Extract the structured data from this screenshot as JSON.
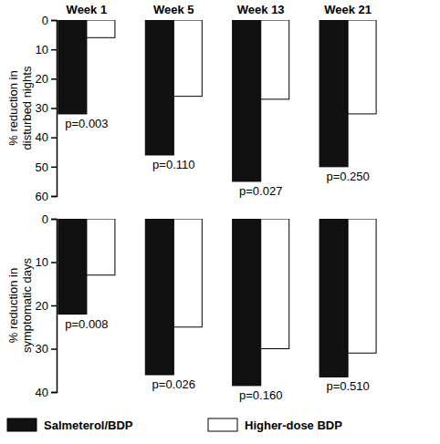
{
  "chart_data": [
    {
      "type": "bar",
      "y_label": "% reduction in\ndisturbed nights",
      "categories": [
        "Week 1",
        "Week 5",
        "Week 13",
        "Week 21"
      ],
      "series": [
        {
          "color": "#111111",
          "values": [
            32,
            46,
            55,
            50
          ]
        },
        {
          "color": "#ffffff",
          "values": [
            6,
            26,
            27,
            32
          ]
        }
      ],
      "annotations": [
        "p=0.003",
        "p=0.110",
        "p=0.027",
        "p=0.250"
      ],
      "ylim": [
        0,
        60
      ],
      "yticks": [
        0,
        10,
        20,
        30,
        40,
        50,
        60
      ]
    },
    {
      "type": "bar",
      "y_label": "% reduction in\nsymptomatic days",
      "categories": [
        null,
        null,
        null,
        null
      ],
      "series": [
        {
          "name": "Salmeterol/BDP",
          "color": "#111111",
          "values": [
            22,
            36,
            38.5,
            36.5
          ]
        },
        {
          "name": "Higher-dose BDP",
          "color": "#ffffff",
          "values": [
            13,
            25,
            30,
            31
          ]
        }
      ],
      "annotations": [
        "p=0.008",
        "p=0.026",
        "p=0.160",
        "p=0.510"
      ],
      "ylim": [
        0,
        40
      ],
      "yticks": [
        0,
        10,
        20,
        30,
        40
      ],
      "legend": "bottom"
    }
  ]
}
